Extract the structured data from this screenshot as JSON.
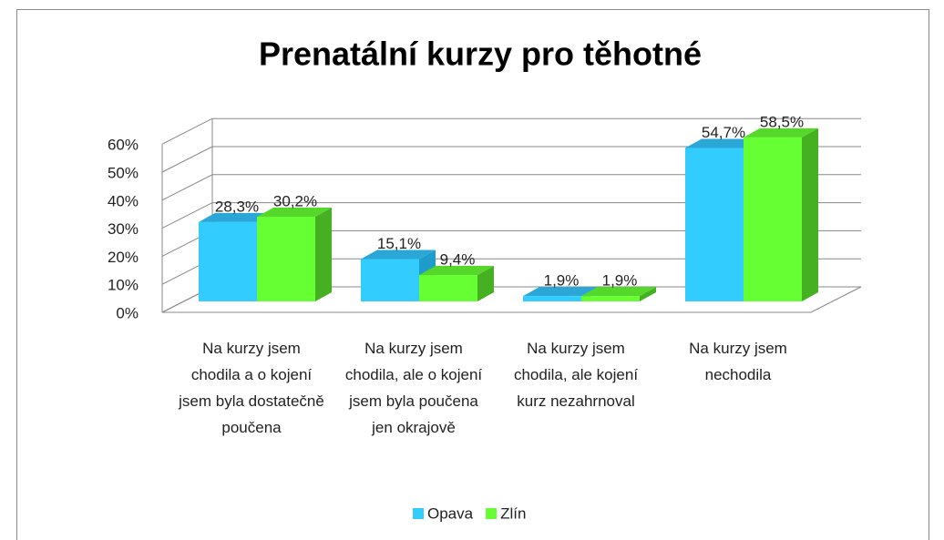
{
  "chart_data": {
    "type": "bar3d",
    "title": "Prenatální kurzy pro těhotné",
    "categories": [
      "Na kurzy jsem chodila a o kojení jsem byla dostatečně poučena",
      "Na kurzy jsem chodila, ale o kojení jsem byla poučena jen okrajově",
      "Na kurzy jsem chodila, ale kojení kurz nezahrnoval",
      "Na kurzy jsem nechodila"
    ],
    "series": [
      {
        "name": "Opava",
        "color": "#33ccff",
        "side": "#1e9ccc",
        "top": "#2aa7d6",
        "values": [
          28.3,
          15.1,
          1.9,
          54.7
        ],
        "value_labels": [
          "28,3%",
          "15,1%",
          "1,9%",
          "54,7%"
        ]
      },
      {
        "name": "Zlín",
        "color": "#66ff33",
        "side": "#44b022",
        "top": "#55d82a",
        "values": [
          30.2,
          9.4,
          1.9,
          58.5
        ],
        "value_labels": [
          "30,2%",
          "9,4%",
          "1,9%",
          "58,5%"
        ]
      }
    ],
    "ylim": [
      0,
      60
    ],
    "yticks": [
      {
        "value": 0,
        "label": "0%"
      },
      {
        "value": 10,
        "label": "10%"
      },
      {
        "value": 20,
        "label": "20%"
      },
      {
        "value": 30,
        "label": "30%"
      },
      {
        "value": 40,
        "label": "40%"
      },
      {
        "value": 50,
        "label": "50%"
      },
      {
        "value": 60,
        "label": "60%"
      }
    ],
    "grid": true,
    "legend": "bottom"
  }
}
